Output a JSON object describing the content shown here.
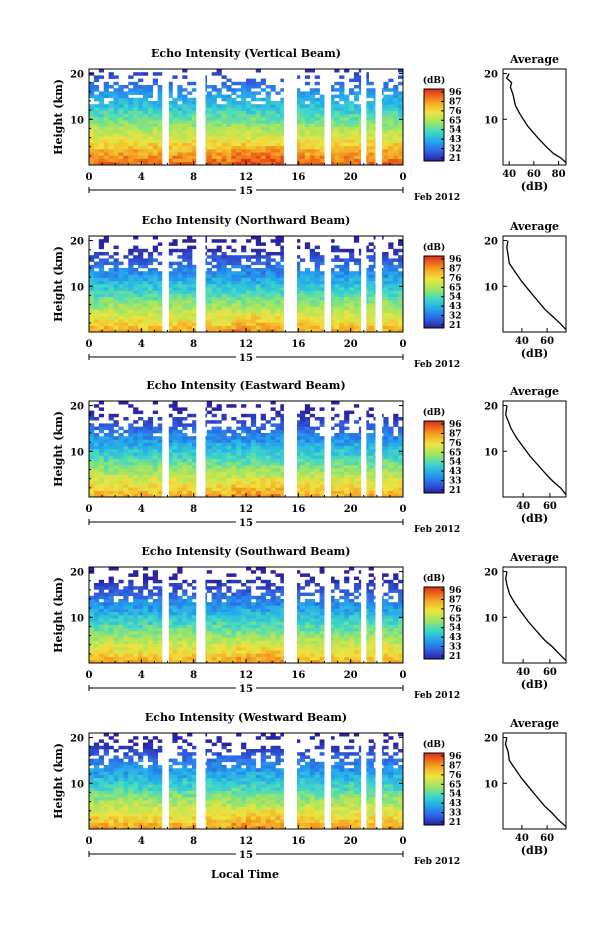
{
  "chart_data": [
    {
      "type": "heatmap",
      "title": "Echo Intensity (Vertical Beam)",
      "ylabel": "Height (km)",
      "yticks": [
        "10",
        "20"
      ],
      "xticks": [
        "0",
        "4",
        "8",
        "12",
        "16",
        "20",
        "0"
      ],
      "date_day": "15",
      "date_month_year": "Feb 2012",
      "colorbar_title": "(dB)",
      "colorbar_ticks": [
        "96",
        "87",
        "76",
        "65",
        "54",
        "43",
        "32",
        "21"
      ],
      "missing_hours": [
        [
          5.6,
          6.1
        ],
        [
          8.2,
          8.9
        ],
        [
          14.9,
          15.9
        ],
        [
          18.0,
          18.5
        ],
        [
          20.8,
          21.2
        ],
        [
          21.9,
          22.4
        ]
      ],
      "profile": {
        "title": "Average",
        "xlabel": "(dB)",
        "xticks": [
          "40",
          "60",
          "80"
        ],
        "yticks": [
          "10",
          "20"
        ],
        "xlim": [
          35,
          86
        ],
        "points": [
          [
            86,
            0.5
          ],
          [
            82,
            1.5
          ],
          [
            76,
            2.5
          ],
          [
            70,
            4
          ],
          [
            63,
            6
          ],
          [
            55,
            8.5
          ],
          [
            49,
            11
          ],
          [
            45,
            13
          ],
          [
            43,
            15.5
          ],
          [
            41,
            17
          ],
          [
            42,
            18
          ],
          [
            38,
            19
          ],
          [
            40,
            20
          ]
        ]
      }
    },
    {
      "type": "heatmap",
      "title": "Echo Intensity (Northward Beam)",
      "ylabel": "Height (km)",
      "yticks": [
        "10",
        "20"
      ],
      "xticks": [
        "0",
        "4",
        "8",
        "12",
        "16",
        "20",
        "0"
      ],
      "date_day": "15",
      "date_month_year": "Feb 2012",
      "colorbar_title": "(dB)",
      "colorbar_ticks": [
        "96",
        "87",
        "76",
        "65",
        "54",
        "43",
        "32",
        "21"
      ],
      "missing_hours": [
        [
          5.6,
          6.1
        ],
        [
          8.2,
          8.9
        ],
        [
          14.9,
          15.9
        ],
        [
          18.0,
          18.5
        ],
        [
          20.8,
          21.2
        ],
        [
          21.9,
          22.4
        ]
      ],
      "profile": {
        "title": "Average",
        "xlabel": "(dB)",
        "xticks": [
          "40",
          "60"
        ],
        "yticks": [
          "10",
          "20"
        ],
        "xlim": [
          25,
          75
        ],
        "points": [
          [
            75,
            0.5
          ],
          [
            70,
            2
          ],
          [
            64,
            3.5
          ],
          [
            58,
            5
          ],
          [
            52,
            7
          ],
          [
            46,
            9
          ],
          [
            40,
            11
          ],
          [
            35,
            13
          ],
          [
            30,
            15
          ],
          [
            29,
            17
          ],
          [
            28,
            18.5
          ],
          [
            29,
            20
          ]
        ]
      }
    },
    {
      "type": "heatmap",
      "title": "Echo Intensity (Eastward Beam)",
      "ylabel": "Height (km)",
      "yticks": [
        "10",
        "20"
      ],
      "xticks": [
        "0",
        "4",
        "8",
        "12",
        "16",
        "20",
        "0"
      ],
      "date_day": "15",
      "date_month_year": "Feb 2012",
      "colorbar_title": "(dB)",
      "colorbar_ticks": [
        "96",
        "87",
        "76",
        "65",
        "54",
        "43",
        "33",
        "21"
      ],
      "missing_hours": [
        [
          5.6,
          6.1
        ],
        [
          8.2,
          8.9
        ],
        [
          14.9,
          15.9
        ],
        [
          18.0,
          18.5
        ],
        [
          20.8,
          21.2
        ],
        [
          21.9,
          22.4
        ]
      ],
      "profile": {
        "title": "Average",
        "xlabel": "(dB)",
        "xticks": [
          "40",
          "60"
        ],
        "yticks": [
          "10",
          "20"
        ],
        "xlim": [
          25,
          72
        ],
        "points": [
          [
            72,
            0.5
          ],
          [
            68,
            2
          ],
          [
            62,
            3.5
          ],
          [
            57,
            5
          ],
          [
            51,
            7
          ],
          [
            45,
            9
          ],
          [
            40,
            11
          ],
          [
            35,
            13
          ],
          [
            31,
            15
          ],
          [
            29,
            16.5
          ],
          [
            27,
            18
          ],
          [
            28,
            20
          ]
        ]
      }
    },
    {
      "type": "heatmap",
      "title": "Echo Intensity (Southward Beam)",
      "ylabel": "Height (km)",
      "yticks": [
        "10",
        "20"
      ],
      "xticks": [
        "0",
        "4",
        "8",
        "12",
        "16",
        "20",
        "0"
      ],
      "date_day": "15",
      "date_month_year": "Feb 2012",
      "colorbar_title": "(dB)",
      "colorbar_ticks": [
        "96",
        "87",
        "76",
        "65",
        "54",
        "43",
        "33",
        "21"
      ],
      "missing_hours": [
        [
          5.6,
          6.1
        ],
        [
          8.2,
          8.9
        ],
        [
          14.9,
          15.9
        ],
        [
          18.0,
          18.5
        ],
        [
          20.8,
          21.2
        ],
        [
          21.9,
          22.4
        ]
      ],
      "profile": {
        "title": "Average",
        "xlabel": "(dB)",
        "xticks": [
          "40",
          "60"
        ],
        "yticks": [
          "10",
          "20"
        ],
        "xlim": [
          25,
          72
        ],
        "points": [
          [
            72,
            0.5
          ],
          [
            67,
            2
          ],
          [
            62,
            3.5
          ],
          [
            56,
            5
          ],
          [
            50,
            7
          ],
          [
            44,
            9
          ],
          [
            39,
            11
          ],
          [
            34,
            13
          ],
          [
            30,
            15
          ],
          [
            28,
            17
          ],
          [
            27,
            18.5
          ],
          [
            28,
            20
          ]
        ]
      }
    },
    {
      "type": "heatmap",
      "title": "Echo Intensity (Westward Beam)",
      "ylabel": "Height (km)",
      "yticks": [
        "10",
        "20"
      ],
      "xticks": [
        "0",
        "4",
        "8",
        "12",
        "16",
        "20",
        "0"
      ],
      "date_day": "15",
      "date_month_year": "Feb 2012",
      "colorbar_title": "(dB)",
      "colorbar_ticks": [
        "96",
        "87",
        "76",
        "65",
        "54",
        "43",
        "33",
        "21"
      ],
      "missing_hours": [
        [
          5.6,
          6.1
        ],
        [
          8.2,
          8.9
        ],
        [
          14.9,
          15.9
        ],
        [
          18.0,
          18.5
        ],
        [
          20.8,
          21.2
        ],
        [
          21.9,
          22.4
        ]
      ],
      "profile": {
        "title": "Average",
        "xlabel": "(dB)",
        "xticks": [
          "40",
          "60"
        ],
        "yticks": [
          "10",
          "20"
        ],
        "xlim": [
          25,
          75
        ],
        "points": [
          [
            75,
            0.5
          ],
          [
            69,
            2
          ],
          [
            64,
            3.5
          ],
          [
            58,
            5
          ],
          [
            52,
            7
          ],
          [
            46,
            9
          ],
          [
            40,
            11
          ],
          [
            35,
            13
          ],
          [
            30,
            15
          ],
          [
            29,
            17
          ],
          [
            27,
            18.5
          ],
          [
            28,
            20
          ]
        ]
      }
    }
  ],
  "footer": {
    "xlabel": "Local Time"
  }
}
